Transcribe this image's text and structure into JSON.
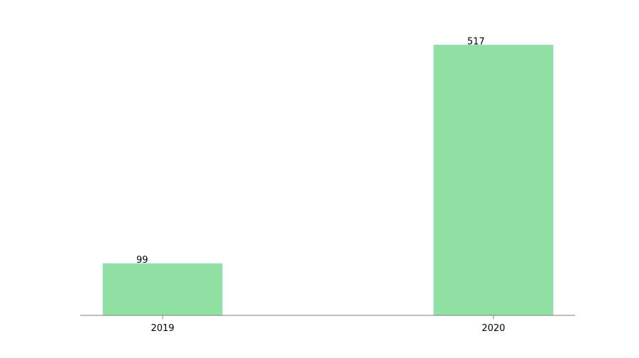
{
  "chart_data": {
    "type": "bar",
    "title": "",
    "xlabel": "",
    "ylabel": "",
    "categories": [
      "2019",
      "2020"
    ],
    "values": [
      99,
      517
    ],
    "data_labels": [
      "99",
      "517"
    ],
    "ylim": [
      0,
      542
    ],
    "grid": false,
    "legend": "none",
    "colors": {
      "bar_fill": "#90dfa3",
      "bar_edge": "#a8d8d0",
      "axis": "#808080"
    }
  }
}
